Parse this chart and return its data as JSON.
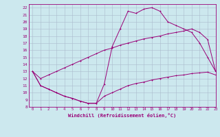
{
  "xlabel": "Windchill (Refroidissement éolien,°C)",
  "bg_color": "#cce8ee",
  "line_color": "#990077",
  "grid_color": "#aabbcc",
  "xlim": [
    -0.5,
    23
  ],
  "ylim": [
    8,
    22.5
  ],
  "xticks": [
    0,
    1,
    2,
    3,
    4,
    5,
    6,
    7,
    8,
    9,
    10,
    11,
    12,
    13,
    14,
    15,
    16,
    17,
    18,
    19,
    20,
    21,
    22,
    23
  ],
  "yticks": [
    8,
    9,
    10,
    11,
    12,
    13,
    14,
    15,
    16,
    17,
    18,
    19,
    20,
    21,
    22
  ],
  "line1_x": [
    0,
    1,
    2,
    3,
    4,
    5,
    6,
    7,
    8,
    9,
    10,
    11,
    12,
    13,
    14,
    15,
    16,
    17,
    18,
    19,
    20,
    21,
    22,
    23
  ],
  "line1_y": [
    13,
    11,
    10.5,
    10,
    9.5,
    9.2,
    8.8,
    8.5,
    8.5,
    11.2,
    16.5,
    19.0,
    21.5,
    21.2,
    21.8,
    22.0,
    21.5,
    20.0,
    19.5,
    19.0,
    18.5,
    17.0,
    15.0,
    13.0
  ],
  "line2_x": [
    0,
    1,
    2,
    3,
    4,
    5,
    6,
    7,
    8,
    9,
    10,
    11,
    12,
    13,
    14,
    15,
    16,
    17,
    18,
    19,
    20,
    21,
    22,
    23
  ],
  "line2_y": [
    13,
    12,
    12.5,
    13.0,
    13.5,
    14.0,
    14.5,
    15.0,
    15.5,
    16.0,
    16.3,
    16.7,
    17.0,
    17.3,
    17.6,
    17.8,
    18.0,
    18.3,
    18.5,
    18.7,
    19.0,
    18.5,
    17.5,
    13.0
  ],
  "line3_x": [
    0,
    1,
    2,
    3,
    4,
    5,
    6,
    7,
    8,
    9,
    10,
    11,
    12,
    13,
    14,
    15,
    16,
    17,
    18,
    19,
    20,
    21,
    22,
    23
  ],
  "line3_y": [
    13,
    11,
    10.5,
    10,
    9.5,
    9.2,
    8.8,
    8.5,
    8.5,
    9.5,
    10.0,
    10.5,
    11.0,
    11.3,
    11.5,
    11.8,
    12.0,
    12.2,
    12.4,
    12.5,
    12.7,
    12.8,
    12.9,
    12.5
  ]
}
